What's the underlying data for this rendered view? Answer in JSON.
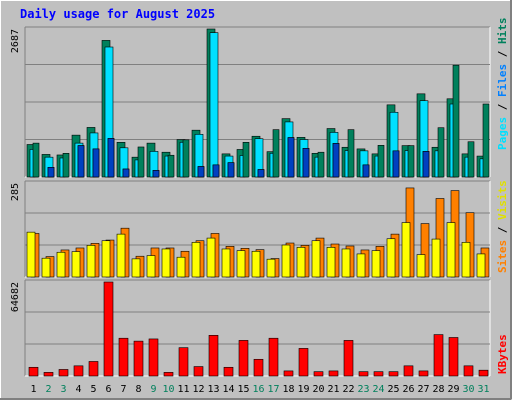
{
  "title": "Daily usage for August 2025",
  "chart_data": {
    "type": "bar",
    "title": "Daily usage for August 2025",
    "categories": [
      "1",
      "2",
      "3",
      "4",
      "5",
      "6",
      "7",
      "8",
      "9",
      "10",
      "11",
      "12",
      "13",
      "14",
      "15",
      "16",
      "17",
      "18",
      "19",
      "20",
      "21",
      "22",
      "23",
      "24",
      "25",
      "26",
      "27",
      "28",
      "29",
      "30",
      "31"
    ],
    "weekend_days": [
      "2",
      "3",
      "9",
      "10",
      "16",
      "17",
      "23",
      "24",
      "30",
      "31"
    ],
    "panels": [
      {
        "id": "hits",
        "ymax_label": "2687",
        "ymax": 2687,
        "series": [
          {
            "name": "Pages",
            "color": "#00805c",
            "values": [
              615,
              175,
              430,
              570,
              510,
              700,
              145,
              545,
              120,
              395,
              675,
              190,
              220,
              260,
              630,
              135,
              860,
              715,
              520,
              450,
              610,
              860,
              220,
              575,
              475,
              570,
              465,
              895,
              2030,
              640,
              1325
            ]
          },
          {
            "name": "Files",
            "color": "#00e0ff",
            "values": [
              500,
              360,
              345,
              615,
              800,
              2360,
              530,
              310,
              465,
              380,
              630,
              775,
              2620,
              380,
              390,
              695,
              430,
              1000,
              680,
              360,
              810,
              480,
              475,
              380,
              1175,
              480,
              1385,
              475,
              1325,
              360,
              330
            ]
          },
          {
            "name": "Hits",
            "color": "#00805c",
            "values": [
              590,
              410,
              400,
              760,
              900,
              2480,
              630,
              360,
              615,
              450,
              680,
              850,
              2687,
              420,
              500,
              740,
              460,
              1060,
              720,
              430,
              880,
              540,
              510,
              420,
              1310,
              570,
              1510,
              540,
              1420,
              420,
              380
            ]
          }
        ]
      },
      {
        "id": "visits",
        "ymax_label": "285",
        "ymax": 285,
        "series": [
          {
            "name": "Visits",
            "color": "#ffff00",
            "values": [
              136,
              57,
              75,
              77,
              96,
              110,
              130,
              55,
              65,
              85,
              60,
              105,
              118,
              85,
              80,
              78,
              54,
              97,
              90,
              110,
              90,
              85,
              70,
              80,
              116,
              165,
              68,
              115,
              165,
              105,
              70
            ]
          },
          {
            "name": "Sites",
            "color": "#ff8000",
            "values": [
              132,
              62,
              82,
              88,
              102,
              112,
              148,
              63,
              88,
              88,
              78,
              110,
              132,
              93,
              87,
              83,
              56,
              103,
              96,
              118,
              100,
              94,
              82,
              93,
              130,
              270,
              162,
              238,
              262,
              195,
              88
            ]
          }
        ]
      },
      {
        "id": "kbytes",
        "ymax_label": "64682",
        "ymax": 64682,
        "series": [
          {
            "name": "KBytes",
            "color": "#ff0000",
            "values": [
              6000,
              2500,
              4500,
              7000,
              10000,
              64682,
              26000,
              24000,
              25500,
              2500,
              19500,
              6500,
              28000,
              6000,
              24500,
              11500,
              26000,
              3500,
              19000,
              3000,
              3500,
              24500,
              3000,
              3000,
              3000,
              7000,
              3500,
              28500,
              26500,
              7000,
              4000
            ]
          }
        ]
      }
    ],
    "legend_labels": {
      "hits": [
        {
          "text": "Pages",
          "color": "#00e0ff"
        },
        {
          "text": " / ",
          "color": "#000000"
        },
        {
          "text": "Files",
          "color": "#0080ff"
        },
        {
          "text": " / ",
          "color": "#000000"
        },
        {
          "text": "Hits",
          "color": "#00805c"
        }
      ],
      "visits": [
        {
          "text": "Sites",
          "color": "#ff8000"
        },
        {
          "text": " / ",
          "color": "#000000"
        },
        {
          "text": "Visits",
          "color": "#e0e000"
        }
      ],
      "kbytes": [
        {
          "text": "KBytes",
          "color": "#ff0000"
        }
      ]
    }
  },
  "colors": {
    "background": "#c0c0c0",
    "title": "#0000ff",
    "weekday_label": "#000000",
    "weekend_label": "#00805c",
    "grid": "#808080",
    "bevel_light": "#ffffff",
    "bevel_dark": "#808080"
  }
}
